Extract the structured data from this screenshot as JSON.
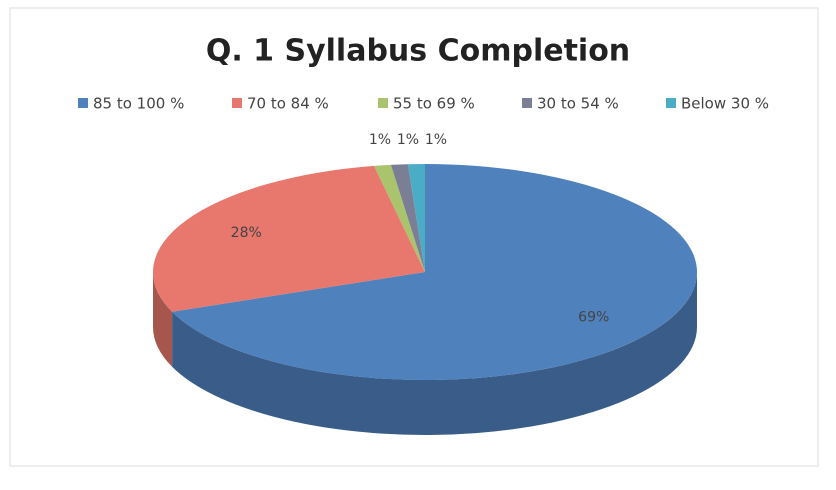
{
  "chart_data": {
    "type": "pie",
    "title": "Q. 1 Syllabus Completion",
    "categories": [
      "85 to 100 %",
      "70 to 84 %",
      "55 to 69 %",
      "30 to 54 %",
      "Below 30 %"
    ],
    "values": [
      69,
      28,
      1,
      1,
      1
    ],
    "value_labels": [
      "69%",
      "28%",
      "1%",
      "1%",
      "1%"
    ],
    "colors": [
      "#4f81bd",
      "#e8776d",
      "#a9c46c",
      "#7b7f96",
      "#4bacc6"
    ],
    "legend": "top"
  }
}
